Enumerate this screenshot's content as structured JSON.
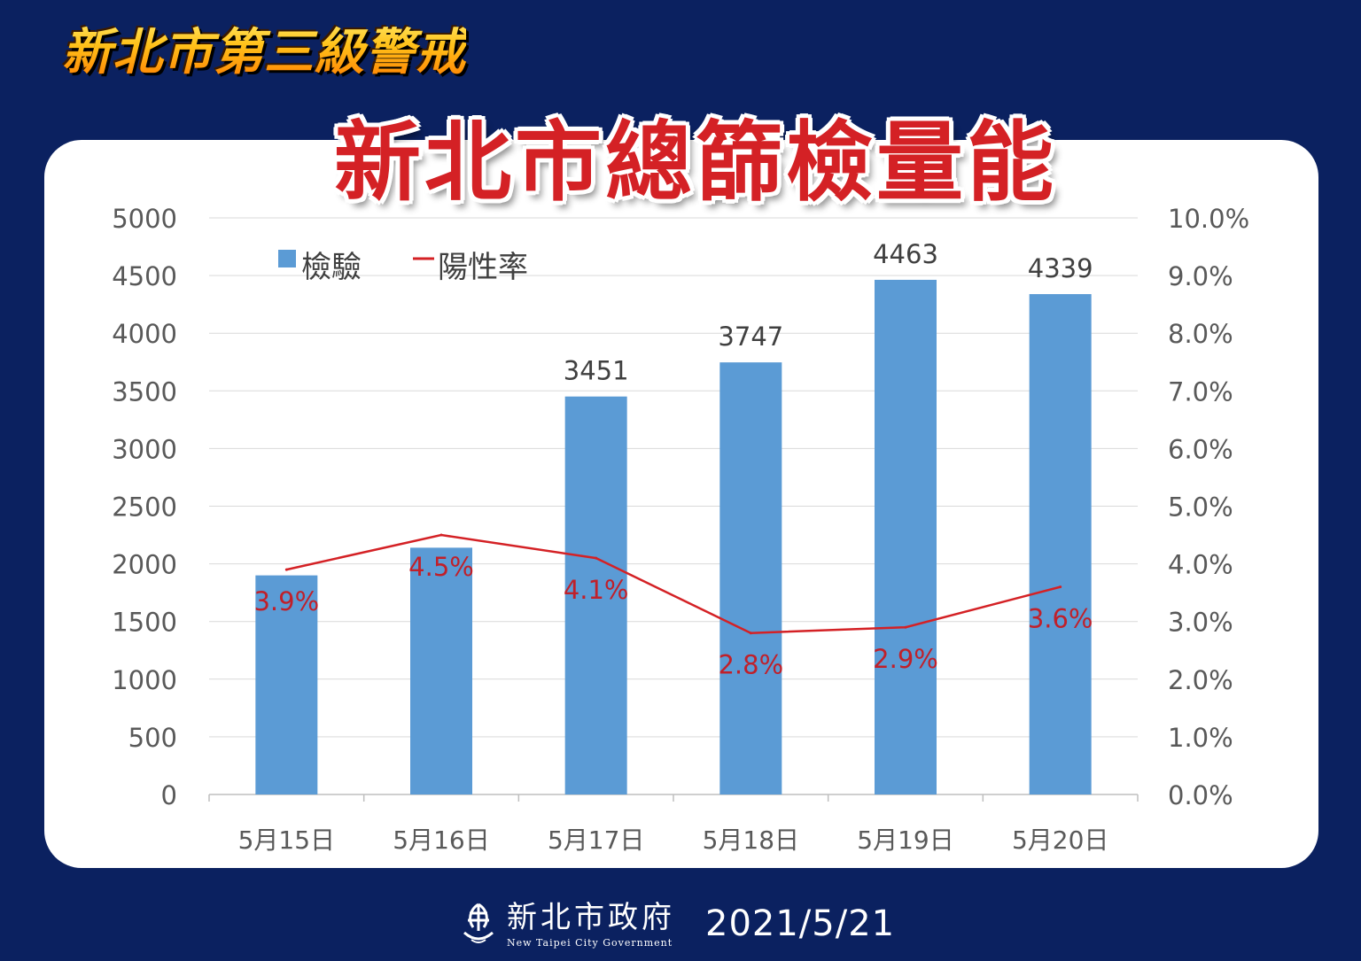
{
  "header": {
    "alert_title": "新北市第三級警戒",
    "main_title": "新北市總篩檢量能"
  },
  "footer": {
    "org_name_zh": "新北市政府",
    "org_name_en": "New Taipei City Government",
    "date": "2021/5/21"
  },
  "colors": {
    "background": "#0b2160",
    "bar": "#5b9bd5",
    "line": "#d42125",
    "title_red": "#d42125",
    "alert_gold": "#ffc21a"
  },
  "chart_data": {
    "type": "bar",
    "categories": [
      "5月15日",
      "5月16日",
      "5月17日",
      "5月18日",
      "5月19日",
      "5月20日"
    ],
    "series": [
      {
        "name": "檢驗",
        "type": "bar",
        "axis": "left",
        "values": [
          1900,
          2140,
          3451,
          3747,
          4463,
          4339
        ],
        "data_labels": [
          "",
          "",
          "3451",
          "3747",
          "4463",
          "4339"
        ]
      },
      {
        "name": "陽性率",
        "type": "line",
        "axis": "right",
        "values": [
          3.9,
          4.5,
          4.1,
          2.8,
          2.9,
          3.6
        ],
        "data_labels": [
          "3.9%",
          "4.5%",
          "4.1%",
          "2.8%",
          "2.9%",
          "3.6%"
        ]
      }
    ],
    "y_left": {
      "ylim": [
        0,
        5000
      ],
      "ticks": [
        "0",
        "500",
        "1000",
        "1500",
        "2000",
        "2500",
        "3000",
        "3500",
        "4000",
        "4500",
        "5000"
      ]
    },
    "y_right": {
      "ylim": [
        0,
        10
      ],
      "ticks": [
        "0.0%",
        "1.0%",
        "2.0%",
        "3.0%",
        "4.0%",
        "5.0%",
        "6.0%",
        "7.0%",
        "8.0%",
        "9.0%",
        "10.0%"
      ]
    },
    "grid": true,
    "legend": "top-left"
  }
}
